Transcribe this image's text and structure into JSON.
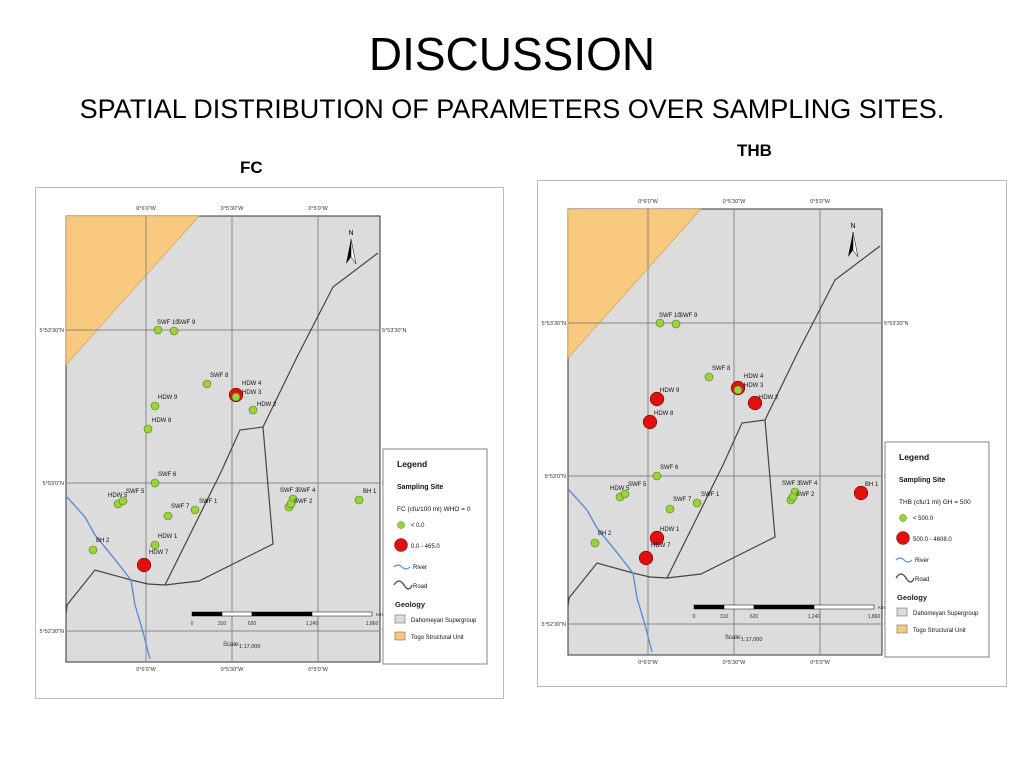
{
  "slide": {
    "title": "DISCUSSION",
    "subtitle": "SPATIAL DISTRIBUTION OF PARAMETERS OVER SAMPLING SITES."
  },
  "colors": {
    "map_bg": "#dcdcdc",
    "togo_unit": "#f8c97e",
    "site_low": "#9ad43a",
    "site_high": "#e01010",
    "river": "#5b8fd6",
    "road": "#444444"
  },
  "axes": {
    "lon_ticks": [
      "0°6'0\"W",
      "0°5'30\"W",
      "0°5'0\"W"
    ],
    "lat_ticks": [
      "5°53'30\"N",
      "5°53'0\"N",
      "5°52'30\"N"
    ]
  },
  "maps": [
    {
      "id": "fc",
      "panel_title": "FC",
      "legend": {
        "title": "Legend",
        "sampling_heading": "Sampling Site",
        "parameter_label": "FC (cfu/100 ml) WHO = 0",
        "class_low": "< 0.0",
        "class_high": "0.0 - 465.0",
        "river": "River",
        "road": "Road",
        "geology_heading": "Geology",
        "geology_1": "Dahomeyan Supergroup",
        "geology_2": "Togo Structural Unit"
      },
      "scale": {
        "label": "Scale:",
        "value": "1:17,000",
        "ticks": [
          "0",
          "310",
          "620",
          "1,240",
          "1,860"
        ],
        "unit": "Km"
      },
      "north": "N",
      "sites": [
        {
          "name": "SWF 10",
          "class": "low"
        },
        {
          "name": "SWF 9",
          "class": "low"
        },
        {
          "name": "SWF 8",
          "class": "low"
        },
        {
          "name": "HDW 4",
          "class": "high"
        },
        {
          "name": "HDW 3",
          "class": "low"
        },
        {
          "name": "HDW 2",
          "class": "low"
        },
        {
          "name": "HDW 9",
          "class": "low"
        },
        {
          "name": "HDW 8",
          "class": "low"
        },
        {
          "name": "SWF 6",
          "class": "low"
        },
        {
          "name": "HDW 5",
          "class": "low"
        },
        {
          "name": "SWF 5",
          "class": "low"
        },
        {
          "name": "SWF 7",
          "class": "low"
        },
        {
          "name": "SWF 1",
          "class": "low"
        },
        {
          "name": "HDW 1",
          "class": "low"
        },
        {
          "name": "HDW 7",
          "class": "high"
        },
        {
          "name": "BH 2",
          "class": "low"
        },
        {
          "name": "SWF 3",
          "class": "low"
        },
        {
          "name": "SWF 4",
          "class": "low"
        },
        {
          "name": "SWF 2",
          "class": "low"
        },
        {
          "name": "BH 1",
          "class": "low"
        }
      ]
    },
    {
      "id": "thb",
      "panel_title": "THB",
      "legend": {
        "title": "Legend",
        "sampling_heading": "Sampling Site",
        "parameter_label": "THB (cfu/1 ml) GH = 500",
        "class_low": "< 500.0",
        "class_high": "500.0 - 4608.0",
        "river": "River",
        "road": "Road",
        "geology_heading": "Geology",
        "geology_1": "Dahomeyan Supergroup",
        "geology_2": "Togo Structural Unit"
      },
      "scale": {
        "label": "Scale:",
        "value": "1:17,000",
        "ticks": [
          "0",
          "310",
          "620",
          "1,240",
          "1,860"
        ],
        "unit": "Km"
      },
      "north": "N",
      "sites": [
        {
          "name": "SWF 10",
          "class": "low"
        },
        {
          "name": "SWF 9",
          "class": "low"
        },
        {
          "name": "SWF 8",
          "class": "low"
        },
        {
          "name": "HDW 4",
          "class": "high"
        },
        {
          "name": "HDW 3",
          "class": "low"
        },
        {
          "name": "HDW 2",
          "class": "high"
        },
        {
          "name": "HDW 9",
          "class": "high"
        },
        {
          "name": "HDW 8",
          "class": "high"
        },
        {
          "name": "SWF 6",
          "class": "low"
        },
        {
          "name": "HDW 5",
          "class": "low"
        },
        {
          "name": "SWF 5",
          "class": "low"
        },
        {
          "name": "SWF 7",
          "class": "low"
        },
        {
          "name": "SWF 1",
          "class": "low"
        },
        {
          "name": "HDW 1",
          "class": "high"
        },
        {
          "name": "HDW 7",
          "class": "high"
        },
        {
          "name": "BH 2",
          "class": "low"
        },
        {
          "name": "SWF 3",
          "class": "low"
        },
        {
          "name": "SWF 4",
          "class": "low"
        },
        {
          "name": "SWF 2",
          "class": "low"
        },
        {
          "name": "BH 1",
          "class": "high"
        }
      ]
    }
  ]
}
